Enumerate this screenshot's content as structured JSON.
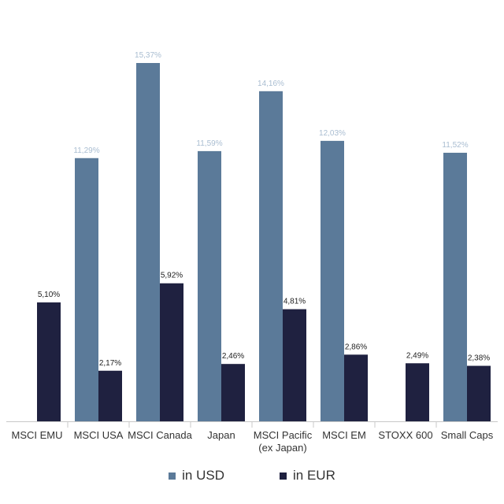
{
  "chart_data": {
    "type": "bar",
    "categories": [
      [
        "MSCI EMU"
      ],
      [
        "MSCI USA"
      ],
      [
        "MSCI Canada"
      ],
      [
        "Japan"
      ],
      [
        "MSCI Pacific",
        "(ex Japan)"
      ],
      [
        "MSCI EM"
      ],
      [
        "STOXX 600"
      ],
      [
        "Small Caps"
      ]
    ],
    "series": [
      {
        "name": "in USD",
        "color": "#5b7a99",
        "values": [
          null,
          11.29,
          15.37,
          11.59,
          14.16,
          12.03,
          null,
          11.52
        ],
        "labels": [
          "",
          "11,29%",
          "15,37%",
          "11,59%",
          "14,16%",
          "12,03%",
          "",
          "11,52%"
        ],
        "label_color": "#a9bdd1"
      },
      {
        "name": "in EUR",
        "color": "#1f2140",
        "values": [
          5.1,
          2.17,
          5.92,
          2.46,
          4.81,
          2.86,
          2.49,
          2.38
        ],
        "labels": [
          "5,10%",
          "2,17%",
          "5,92%",
          "2,46%",
          "4,81%",
          "2,86%",
          "2,49%",
          "2,38%"
        ],
        "label_color": "#222222"
      }
    ],
    "ylim": [
      0,
      15.37
    ],
    "grid": false,
    "legend": "bottom"
  }
}
